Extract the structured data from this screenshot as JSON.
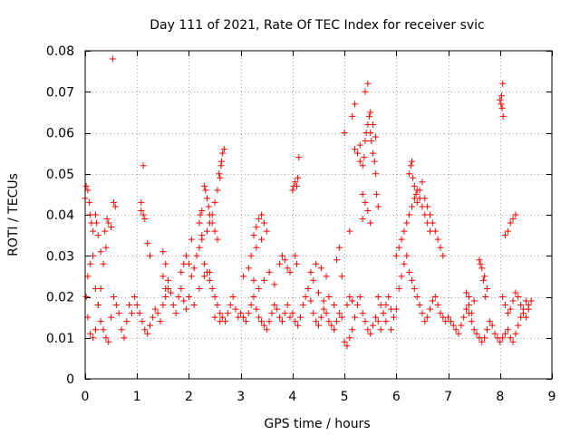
{
  "chart_data": {
    "type": "scatter",
    "title": "Day 111 of 2021, Rate Of TEC Index for receiver svic",
    "xlabel": "GPS time / hours",
    "ylabel": "ROTI / TECUs",
    "xlim": [
      0,
      9
    ],
    "ylim": [
      0,
      0.08
    ],
    "xticks": [
      0,
      1,
      2,
      3,
      4,
      5,
      6,
      7,
      8,
      9
    ],
    "yticks": [
      0,
      0.01,
      0.02,
      0.03,
      0.04,
      0.05,
      0.06,
      0.07,
      0.08
    ],
    "ytick_labels": [
      "0",
      "0.01",
      "0.02",
      "0.03",
      "0.04",
      "0.05",
      "0.06",
      "0.07",
      "0.08"
    ],
    "grid": true,
    "marker": "plus",
    "color": "#ff0000",
    "series": [
      {
        "name": "ROTI",
        "x": [
          0.0,
          0.02,
          0.05,
          0.08,
          0.1,
          0.12,
          0.15,
          0.2,
          0.22,
          0.25,
          0.02,
          0.05,
          0.1,
          0.15,
          0.2,
          0.25,
          0.3,
          0.05,
          0.1,
          0.15,
          0.2,
          0.25,
          0.3,
          0.35,
          0.4,
          0.45,
          0.5,
          0.55,
          0.6,
          0.65,
          0.7,
          0.75,
          0.8,
          0.85,
          0.9,
          0.95,
          0.3,
          0.35,
          0.4,
          0.45,
          0.5,
          0.38,
          0.42,
          0.55,
          0.58,
          0.53,
          1.0,
          1.05,
          1.1,
          1.15,
          1.2,
          1.25,
          1.3,
          1.35,
          1.4,
          1.45,
          1.5,
          1.55,
          1.6,
          1.65,
          1.7,
          1.75,
          1.8,
          1.85,
          1.9,
          1.95,
          1.08,
          1.12,
          1.15,
          1.08,
          1.12,
          1.2,
          1.25,
          1.5,
          1.55,
          1.5,
          1.55,
          1.6,
          1.85,
          1.9,
          1.95,
          2.0,
          2.05,
          2.1,
          2.15,
          2.2,
          2.25,
          2.3,
          2.35,
          2.4,
          2.45,
          2.5,
          2.55,
          2.6,
          2.65,
          2.7,
          2.75,
          2.8,
          2.85,
          2.9,
          2.95,
          2.0,
          2.1,
          2.2,
          2.3,
          2.4,
          2.5,
          2.6,
          2.05,
          2.25,
          2.35,
          2.4,
          2.45,
          2.5,
          2.55,
          2.6,
          2.62,
          2.65,
          2.68,
          2.58,
          2.63,
          2.3,
          2.32,
          2.35,
          2.38,
          2.4,
          2.45,
          2.5,
          2.55,
          2.2,
          2.22,
          2.25,
          3.0,
          3.05,
          3.1,
          3.15,
          3.2,
          3.25,
          3.3,
          3.35,
          3.4,
          3.45,
          3.5,
          3.55,
          3.6,
          3.65,
          3.7,
          3.75,
          3.8,
          3.85,
          3.9,
          3.95,
          3.05,
          3.15,
          3.25,
          3.35,
          3.45,
          3.55,
          3.65,
          3.25,
          3.3,
          3.35,
          3.4,
          3.45,
          3.5,
          3.75,
          3.8,
          3.85,
          3.9,
          3.95,
          3.2,
          3.3,
          3.4,
          4.0,
          4.02,
          4.05,
          4.08,
          4.1,
          4.12,
          4.05,
          4.08,
          4.0,
          4.05,
          4.1,
          4.15,
          4.2,
          4.25,
          4.3,
          4.35,
          4.4,
          4.45,
          4.5,
          4.55,
          4.6,
          4.65,
          4.7,
          4.75,
          4.8,
          4.85,
          4.9,
          4.95,
          4.3,
          4.4,
          4.5,
          4.6,
          4.7,
          4.8,
          4.35,
          4.45,
          4.55,
          4.65,
          4.85,
          4.9,
          4.95,
          5.0,
          5.05,
          5.1,
          5.15,
          5.2,
          5.25,
          5.3,
          5.35,
          5.4,
          5.45,
          5.5,
          5.55,
          5.6,
          5.65,
          5.7,
          5.75,
          5.8,
          5.85,
          5.9,
          5.95,
          5.15,
          5.2,
          5.25,
          5.3,
          5.35,
          5.38,
          5.4,
          5.42,
          5.45,
          5.48,
          5.5,
          5.52,
          5.55,
          5.58,
          5.6,
          5.62,
          5.65,
          5.35,
          5.4,
          5.45,
          5.5,
          5.55,
          5.6,
          5.3,
          5.35,
          5.4,
          5.45,
          5.5,
          5.1,
          5.15,
          5.2,
          5.0,
          5.05,
          5.1,
          6.0,
          6.05,
          6.1,
          6.15,
          6.2,
          6.25,
          6.3,
          6.35,
          6.4,
          6.45,
          6.5,
          6.55,
          6.6,
          6.65,
          6.7,
          6.75,
          6.8,
          6.85,
          6.9,
          6.95,
          6.0,
          6.05,
          6.1,
          6.15,
          6.2,
          6.25,
          6.3,
          6.35,
          6.4,
          6.45,
          6.5,
          6.55,
          6.6,
          6.65,
          6.25,
          6.28,
          6.3,
          6.32,
          6.35,
          6.38,
          6.4,
          6.45,
          6.5,
          6.55,
          6.6,
          6.65,
          6.7,
          6.75,
          6.8,
          6.85,
          6.9,
          5.65,
          5.7,
          5.75,
          5.8,
          5.9,
          7.0,
          7.05,
          7.1,
          7.15,
          7.2,
          7.25,
          7.3,
          7.35,
          7.4,
          7.45,
          7.5,
          7.55,
          7.6,
          7.65,
          7.7,
          7.75,
          7.8,
          7.85,
          7.9,
          7.95,
          7.6,
          7.65,
          7.7,
          7.75,
          7.62,
          7.68,
          7.72,
          7.4,
          7.45,
          7.5,
          7.35,
          7.4,
          8.0,
          8.02,
          8.04,
          8.06,
          8.05,
          8.03,
          8.0,
          8.05,
          8.1,
          8.15,
          8.2,
          8.25,
          8.3,
          8.35,
          8.4,
          8.45,
          8.5,
          8.55,
          8.1,
          8.15,
          8.2,
          8.25,
          8.3,
          8.05,
          8.1,
          8.15,
          8.2,
          8.25,
          8.3,
          8.35,
          8.4,
          8.45,
          8.5,
          8.55,
          8.6
        ],
        "y": [
          0.044,
          0.047,
          0.046,
          0.043,
          0.04,
          0.038,
          0.036,
          0.04,
          0.038,
          0.035,
          0.02,
          0.015,
          0.011,
          0.01,
          0.012,
          0.018,
          0.022,
          0.025,
          0.028,
          0.03,
          0.022,
          0.018,
          0.014,
          0.012,
          0.01,
          0.009,
          0.015,
          0.02,
          0.018,
          0.016,
          0.012,
          0.01,
          0.014,
          0.018,
          0.016,
          0.02,
          0.031,
          0.028,
          0.032,
          0.038,
          0.037,
          0.036,
          0.039,
          0.043,
          0.042,
          0.078,
          0.018,
          0.016,
          0.014,
          0.012,
          0.011,
          0.013,
          0.015,
          0.017,
          0.016,
          0.014,
          0.018,
          0.02,
          0.022,
          0.021,
          0.018,
          0.016,
          0.02,
          0.022,
          0.019,
          0.017,
          0.041,
          0.04,
          0.039,
          0.043,
          0.052,
          0.033,
          0.03,
          0.031,
          0.028,
          0.025,
          0.022,
          0.024,
          0.026,
          0.028,
          0.03,
          0.028,
          0.025,
          0.027,
          0.03,
          0.032,
          0.034,
          0.028,
          0.026,
          0.024,
          0.022,
          0.02,
          0.018,
          0.016,
          0.015,
          0.014,
          0.016,
          0.018,
          0.02,
          0.017,
          0.015,
          0.02,
          0.018,
          0.022,
          0.025,
          0.026,
          0.015,
          0.014,
          0.034,
          0.035,
          0.036,
          0.038,
          0.04,
          0.043,
          0.046,
          0.049,
          0.052,
          0.055,
          0.056,
          0.05,
          0.053,
          0.047,
          0.046,
          0.044,
          0.042,
          0.04,
          0.038,
          0.036,
          0.034,
          0.038,
          0.04,
          0.041,
          0.016,
          0.015,
          0.014,
          0.016,
          0.018,
          0.02,
          0.017,
          0.015,
          0.014,
          0.013,
          0.012,
          0.014,
          0.016,
          0.018,
          0.017,
          0.015,
          0.014,
          0.016,
          0.018,
          0.015,
          0.025,
          0.027,
          0.024,
          0.022,
          0.024,
          0.026,
          0.023,
          0.035,
          0.037,
          0.039,
          0.04,
          0.038,
          0.036,
          0.028,
          0.03,
          0.029,
          0.027,
          0.026,
          0.03,
          0.032,
          0.034,
          0.046,
          0.047,
          0.048,
          0.047,
          0.049,
          0.054,
          0.03,
          0.028,
          0.016,
          0.014,
          0.013,
          0.015,
          0.018,
          0.02,
          0.022,
          0.019,
          0.016,
          0.014,
          0.013,
          0.015,
          0.017,
          0.016,
          0.014,
          0.013,
          0.012,
          0.014,
          0.016,
          0.015,
          0.022,
          0.024,
          0.021,
          0.019,
          0.02,
          0.018,
          0.026,
          0.028,
          0.027,
          0.025,
          0.029,
          0.032,
          0.025,
          0.009,
          0.008,
          0.01,
          0.012,
          0.015,
          0.018,
          0.02,
          0.016,
          0.014,
          0.012,
          0.011,
          0.013,
          0.015,
          0.014,
          0.012,
          0.016,
          0.018,
          0.02,
          0.017,
          0.015,
          0.019,
          0.056,
          0.055,
          0.053,
          0.052,
          0.054,
          0.058,
          0.06,
          0.062,
          0.064,
          0.06,
          0.058,
          0.055,
          0.053,
          0.05,
          0.045,
          0.042,
          0.039,
          0.07,
          0.072,
          0.065,
          0.062,
          0.059,
          0.057,
          0.045,
          0.043,
          0.041,
          0.038,
          0.036,
          0.064,
          0.067,
          0.06,
          0.018,
          0.02,
          0.017,
          0.022,
          0.025,
          0.028,
          0.03,
          0.026,
          0.024,
          0.022,
          0.02,
          0.018,
          0.016,
          0.014,
          0.015,
          0.017,
          0.019,
          0.02,
          0.018,
          0.016,
          0.015,
          0.014,
          0.03,
          0.032,
          0.034,
          0.036,
          0.038,
          0.04,
          0.042,
          0.044,
          0.046,
          0.044,
          0.042,
          0.04,
          0.038,
          0.036,
          0.05,
          0.052,
          0.053,
          0.049,
          0.047,
          0.045,
          0.043,
          0.046,
          0.048,
          0.044,
          0.042,
          0.04,
          0.038,
          0.036,
          0.034,
          0.032,
          0.03,
          0.02,
          0.018,
          0.016,
          0.014,
          0.012,
          0.015,
          0.014,
          0.013,
          0.012,
          0.011,
          0.013,
          0.015,
          0.017,
          0.016,
          0.014,
          0.012,
          0.011,
          0.01,
          0.009,
          0.01,
          0.012,
          0.014,
          0.013,
          0.011,
          0.01,
          0.029,
          0.027,
          0.025,
          0.022,
          0.028,
          0.024,
          0.02,
          0.018,
          0.016,
          0.019,
          0.021,
          0.02,
          0.068,
          0.067,
          0.066,
          0.064,
          0.072,
          0.069,
          0.009,
          0.01,
          0.011,
          0.012,
          0.01,
          0.009,
          0.011,
          0.013,
          0.015,
          0.017,
          0.019,
          0.018,
          0.035,
          0.036,
          0.038,
          0.039,
          0.04,
          0.02,
          0.018,
          0.016,
          0.017,
          0.019,
          0.021,
          0.02,
          0.018,
          0.016,
          0.015,
          0.017,
          0.019
        ]
      }
    ]
  }
}
